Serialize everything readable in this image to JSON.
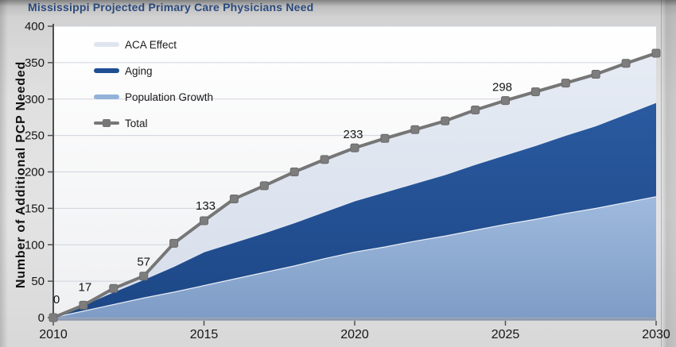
{
  "title": "Mississippi Projected Primary Care Physicians Need",
  "y_axis": {
    "title": "Number of  Additional PCP Needed",
    "ticks": [
      0,
      50,
      100,
      150,
      200,
      250,
      300,
      350,
      400
    ]
  },
  "x_axis": {
    "ticks": [
      2010,
      2015,
      2020,
      2025,
      2030
    ]
  },
  "legend": [
    {
      "label": "ACA Effect",
      "color": "#dfe5ef"
    },
    {
      "label": "Aging",
      "color": "#1f4e92"
    },
    {
      "label": "Population Growth",
      "color": "#92b2da"
    },
    {
      "label": "Total",
      "color": "#777777"
    }
  ],
  "chart_data": {
    "type": "area",
    "stacked": true,
    "title": "Mississippi Projected Primary Care Physicians Need",
    "ylabel": "Number of  Additional PCP Needed",
    "xlabel": "",
    "xlim": [
      2010,
      2030
    ],
    "ylim": [
      0,
      400
    ],
    "grid": true,
    "legend_position": "top-left",
    "x": [
      2010,
      2011,
      2012,
      2013,
      2014,
      2015,
      2016,
      2017,
      2018,
      2019,
      2020,
      2021,
      2022,
      2023,
      2024,
      2025,
      2026,
      2027,
      2028,
      2029,
      2030
    ],
    "series": [
      {
        "name": "Population Growth",
        "values": [
          0,
          9,
          18,
          27,
          35,
          44,
          53,
          62,
          71,
          81,
          90,
          97,
          105,
          112,
          120,
          128,
          135,
          143,
          150,
          158,
          166
        ]
      },
      {
        "name": "Aging",
        "values": [
          0,
          8,
          17,
          25,
          35,
          46,
          50,
          54,
          59,
          64,
          70,
          75,
          79,
          84,
          90,
          95,
          101,
          107,
          113,
          121,
          129
        ]
      },
      {
        "name": "ACA Effect",
        "values": [
          0,
          0,
          5,
          5,
          32,
          43,
          60,
          65,
          70,
          72,
          73,
          74,
          74,
          74,
          75,
          75,
          74,
          72,
          71,
          70,
          68
        ]
      }
    ],
    "total": {
      "name": "Total",
      "values": [
        0,
        17,
        40,
        57,
        102,
        133,
        163,
        181,
        200,
        217,
        233,
        246,
        258,
        270,
        285,
        298,
        310,
        322,
        334,
        349,
        363
      ]
    },
    "point_labels": [
      {
        "x": 2010,
        "label": "0"
      },
      {
        "x": 2011,
        "label": "17"
      },
      {
        "x": 2013,
        "label": "57"
      },
      {
        "x": 2015,
        "label": "133"
      },
      {
        "x": 2020,
        "label": "233"
      },
      {
        "x": 2025,
        "label": "298"
      }
    ]
  },
  "colors": {
    "population_growth_top": "#9fbadd",
    "population_growth_bottom": "#7e9cc6",
    "aging_top": "#2a5aa0",
    "aging_bottom": "#1d4786",
    "aca_top": "#e6ebf4",
    "aca_bottom": "#d6deeb",
    "total_line": "#767676",
    "marker_fill": "#7d7d7d",
    "marker_stroke": "#6a6a6a",
    "grid": "#ced3db",
    "axis_y": "#4f4f4f",
    "axis_x": "#8e9ab0",
    "title": "#2b4a7d",
    "text": "#161616",
    "plot_bg_top": "#ffffff",
    "plot_bg_bottom": "#eff0f2"
  }
}
